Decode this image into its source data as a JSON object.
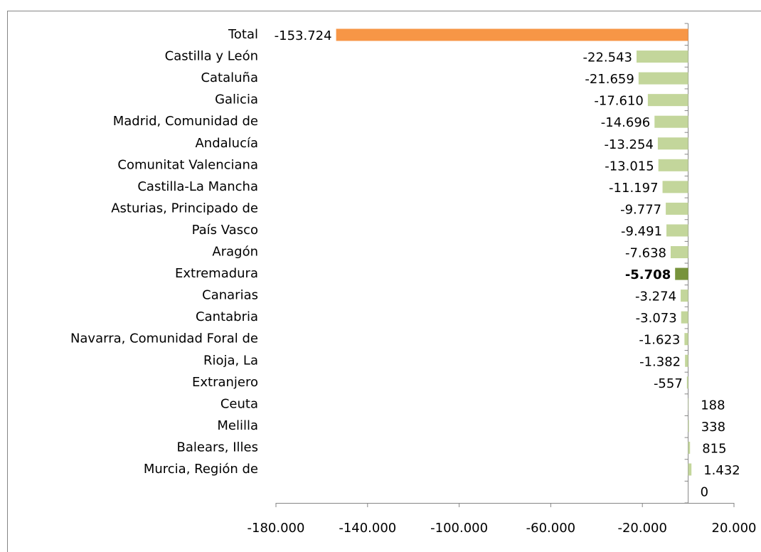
{
  "chart_data": {
    "type": "hbar",
    "categories": [
      "Total",
      "Castilla y León",
      "Cataluña",
      "Galicia",
      "Madrid, Comunidad de",
      "Andalucía",
      "Comunitat Valenciana",
      "Castilla-La Mancha",
      "Asturias, Principado de",
      "País Vasco",
      "Aragón",
      "Extremadura",
      "Canarias",
      "Cantabria",
      "Navarra, Comunidad Foral de",
      "Rioja, La",
      "Extranjero",
      "Ceuta",
      "Melilla",
      "Balears, Illes",
      "Murcia, Región de",
      null
    ],
    "values": [
      -153724,
      -22543,
      -21659,
      -17610,
      -14696,
      -13254,
      -13015,
      -11197,
      -9777,
      -9491,
      -7638,
      -5708,
      -3274,
      -3073,
      -1623,
      -1382,
      -557,
      188,
      338,
      815,
      1432,
      0
    ],
    "value_labels": [
      "-153.724",
      "-22.543",
      "-21.659",
      "-17.610",
      "-14.696",
      "-13.254",
      "-13.015",
      "-11.197",
      "-9.777",
      "-9.491",
      "-7.638",
      "-5.708",
      "-3.274",
      "-3.073",
      "-1.623",
      "-1.382",
      "-557",
      "188",
      "338",
      "815",
      "1.432",
      "0"
    ],
    "colors": [
      "#f79646",
      "#c3d69b",
      "#c3d69b",
      "#c3d69b",
      "#c3d69b",
      "#c3d69b",
      "#c3d69b",
      "#c3d69b",
      "#c3d69b",
      "#c3d69b",
      "#c3d69b",
      "#77933c",
      "#c3d69b",
      "#c3d69b",
      "#c3d69b",
      "#c3d69b",
      "#c3d69b",
      "#c3d69b",
      "#c3d69b",
      "#c3d69b",
      "#c3d69b",
      "#c3d69b"
    ],
    "highlight_category": "Extremadura",
    "xlim": [
      -180000,
      20000
    ],
    "xticks": [
      {
        "value": -180000,
        "label": "-180.000"
      },
      {
        "value": -140000,
        "label": "-140.000"
      },
      {
        "value": -100000,
        "label": "-100.000"
      },
      {
        "value": -60000,
        "label": "-60.000"
      },
      {
        "value": -20000,
        "label": "-20.000"
      },
      {
        "value": 20000,
        "label": "20.000"
      }
    ],
    "grid": false
  }
}
